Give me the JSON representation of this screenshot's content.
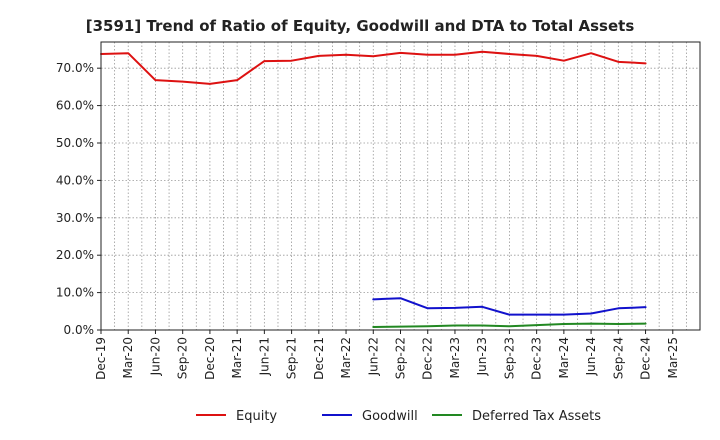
{
  "chart_data": {
    "type": "line",
    "title": "[3591]  Trend of Ratio of Equity, Goodwill and DTA to Total Assets",
    "xlabel": "",
    "ylabel": "",
    "ylim": [
      0,
      77
    ],
    "yticks": [
      "0.0%",
      "10.0%",
      "20.0%",
      "30.0%",
      "40.0%",
      "50.0%",
      "60.0%",
      "70.0%"
    ],
    "ytick_values": [
      0,
      10,
      20,
      30,
      40,
      50,
      60,
      70
    ],
    "x_ticks": [
      "Dec-19",
      "Mar-20",
      "Jun-20",
      "Sep-20",
      "Dec-20",
      "Mar-21",
      "Jun-21",
      "Sep-21",
      "Dec-21",
      "Mar-22",
      "Jun-22",
      "Sep-22",
      "Dec-22",
      "Mar-23",
      "Jun-23",
      "Sep-23",
      "Dec-23",
      "Mar-24",
      "Jun-24",
      "Sep-24",
      "Dec-24",
      "Mar-25"
    ],
    "grid": true,
    "legend_position": "bottom",
    "series": [
      {
        "name": "Equity",
        "color": "#dd1111",
        "values": [
          73.8,
          74.0,
          66.8,
          66.4,
          65.8,
          66.8,
          71.9,
          72.0,
          73.3,
          73.6,
          73.2,
          74.1,
          73.6,
          73.6,
          74.4,
          73.8,
          73.3,
          72.0,
          74.0,
          71.7,
          71.3,
          null
        ]
      },
      {
        "name": "Goodwill",
        "color": "#1111cc",
        "values": [
          null,
          null,
          null,
          null,
          null,
          null,
          null,
          null,
          null,
          null,
          8.2,
          8.5,
          5.8,
          5.9,
          6.2,
          4.1,
          4.1,
          4.1,
          4.4,
          5.8,
          6.1,
          null
        ]
      },
      {
        "name": "Deferred Tax Assets",
        "color": "#228822",
        "values": [
          null,
          null,
          null,
          null,
          null,
          null,
          null,
          null,
          null,
          null,
          0.8,
          0.9,
          1.0,
          1.2,
          1.2,
          1.0,
          1.3,
          1.6,
          1.7,
          1.6,
          1.7,
          null
        ]
      }
    ]
  }
}
